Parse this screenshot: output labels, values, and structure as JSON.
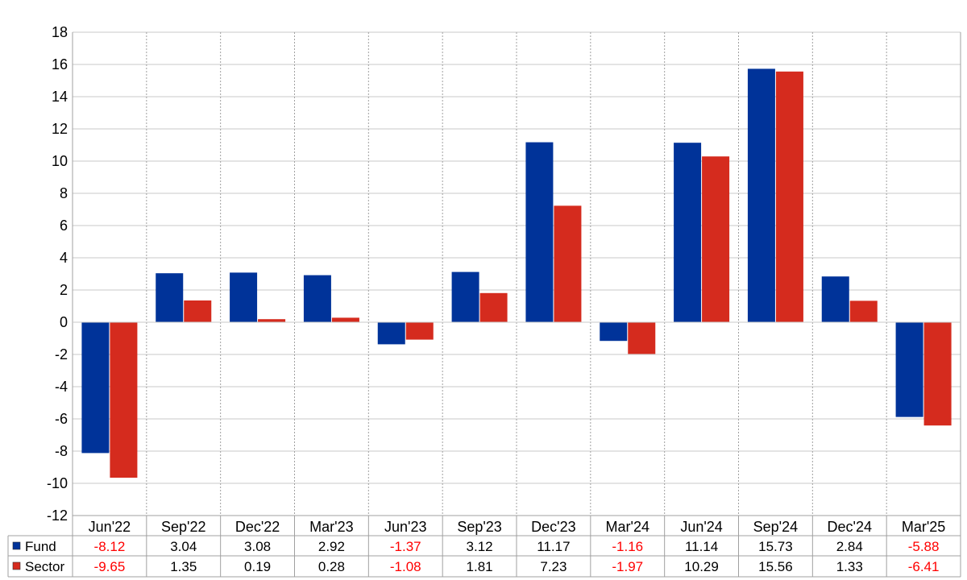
{
  "chart_data": {
    "type": "bar",
    "title": "",
    "xlabel": "",
    "ylabel": "",
    "ylim": [
      -12,
      18
    ],
    "yticks": [
      18,
      16,
      14,
      12,
      10,
      8,
      6,
      4,
      2,
      0,
      -2,
      -4,
      -6,
      -8,
      -10,
      -12
    ],
    "grid": true,
    "categories": [
      "Jun'22",
      "Sep'22",
      "Dec'22",
      "Mar'23",
      "Jun'23",
      "Sep'23",
      "Dec'23",
      "Mar'24",
      "Jun'24",
      "Sep'24",
      "Dec'24",
      "Mar'25"
    ],
    "series": [
      {
        "name": "Fund",
        "color": "#003399",
        "values": [
          -8.12,
          3.04,
          3.08,
          2.92,
          -1.37,
          3.12,
          11.17,
          -1.16,
          11.14,
          15.73,
          2.84,
          -5.88
        ]
      },
      {
        "name": "Sector",
        "color": "#d52b1e",
        "values": [
          -9.65,
          1.35,
          0.19,
          0.28,
          -1.08,
          1.81,
          7.23,
          -1.97,
          10.29,
          15.56,
          1.33,
          -6.41
        ]
      }
    ],
    "table": {
      "rows": [
        {
          "label": "Fund",
          "cells": [
            "-8.12",
            "3.04",
            "3.08",
            "2.92",
            "-1.37",
            "3.12",
            "11.17",
            "-1.16",
            "11.14",
            "15.73",
            "2.84",
            "-5.88"
          ]
        },
        {
          "label": "Sector",
          "cells": [
            "-9.65",
            "1.35",
            "0.19",
            "0.28",
            "-1.08",
            "1.81",
            "7.23",
            "-1.97",
            "10.29",
            "15.56",
            "1.33",
            "-6.41"
          ]
        }
      ]
    },
    "negative_value_color": "#ff0000"
  }
}
